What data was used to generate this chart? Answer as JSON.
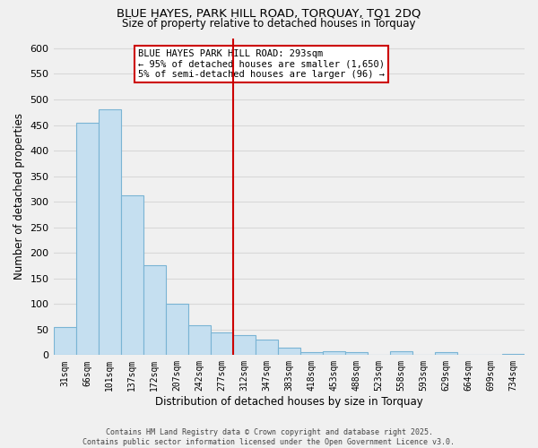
{
  "title": "BLUE HAYES, PARK HILL ROAD, TORQUAY, TQ1 2DQ",
  "subtitle": "Size of property relative to detached houses in Torquay",
  "xlabel": "Distribution of detached houses by size in Torquay",
  "ylabel": "Number of detached properties",
  "bar_color": "#c5dff0",
  "bar_edge_color": "#7ab4d4",
  "categories": [
    "31sqm",
    "66sqm",
    "101sqm",
    "137sqm",
    "172sqm",
    "207sqm",
    "242sqm",
    "277sqm",
    "312sqm",
    "347sqm",
    "383sqm",
    "418sqm",
    "453sqm",
    "488sqm",
    "523sqm",
    "558sqm",
    "593sqm",
    "629sqm",
    "664sqm",
    "699sqm",
    "734sqm"
  ],
  "values": [
    55,
    455,
    480,
    312,
    175,
    100,
    58,
    45,
    40,
    30,
    15,
    5,
    8,
    5,
    0,
    8,
    0,
    5,
    0,
    0,
    2
  ],
  "ylim": [
    0,
    620
  ],
  "yticks": [
    0,
    50,
    100,
    150,
    200,
    250,
    300,
    350,
    400,
    450,
    500,
    550,
    600
  ],
  "vline_x": 7.5,
  "vline_color": "#cc0000",
  "annotation_title": "BLUE HAYES PARK HILL ROAD: 293sqm",
  "annotation_line1": "← 95% of detached houses are smaller (1,650)",
  "annotation_line2": "5% of semi-detached houses are larger (96) →",
  "footer_line1": "Contains HM Land Registry data © Crown copyright and database right 2025.",
  "footer_line2": "Contains public sector information licensed under the Open Government Licence v3.0.",
  "bg_color": "#f0f0f0",
  "grid_color": "#d8d8d8"
}
